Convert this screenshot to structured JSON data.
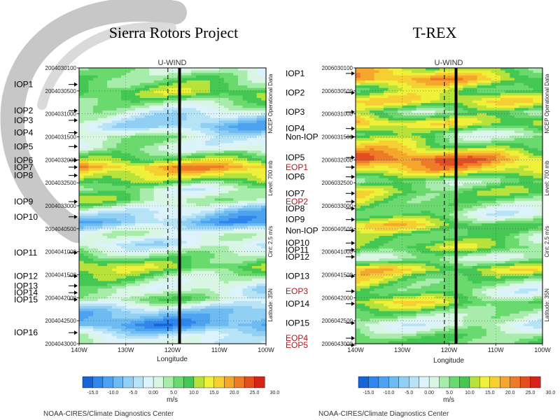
{
  "colors": {
    "levels": [
      -15,
      -12.5,
      -10,
      -7.5,
      -5,
      -2.5,
      0,
      2.5,
      5,
      7.5,
      10,
      12.5,
      15,
      17.5,
      20,
      22.5,
      25,
      27.5,
      30
    ],
    "palette": [
      "#1565d8",
      "#2f86ec",
      "#4ea3f0",
      "#6ebbf2",
      "#91d0f4",
      "#b7e3f7",
      "#ddf3fb",
      "#d8f6e3",
      "#a8ecac",
      "#6ad96e",
      "#45c853",
      "#b7e23b",
      "#eef03a",
      "#f6cf32",
      "#f5a72c",
      "#ef7a27",
      "#e44d1f",
      "#d6231a"
    ]
  },
  "chart_data": [
    {
      "type": "heatmap",
      "title": "Sierra Rotors Project",
      "subtitle": "U-WIND",
      "xlabel": "Longitude",
      "x_ticks": [
        "140W",
        "130W",
        "120W",
        "110W",
        "100W"
      ],
      "xlim": [
        -140,
        -100
      ],
      "y_ticks": [
        "2004030100",
        "2004030500",
        "2004031000",
        "2004031500",
        "2004032000",
        "2004032500",
        "2004033000",
        "2004040500",
        "2004041000",
        "2004041500",
        "2004042000",
        "2004042500",
        "2004043000"
      ],
      "side_texts": [
        "NCEP Operational Data",
        "Level: 700 mb",
        "Cint: 2.5 m/s",
        "Latitude: 35N"
      ],
      "base_value": 3,
      "east_gradient": -4,
      "dashed_line_lon": -121,
      "thick_line_lon": -118.5,
      "bands": [
        {
          "t": 0.0,
          "v": 4
        },
        {
          "t": 0.05,
          "v": 9
        },
        {
          "t": 0.09,
          "v": 14
        },
        {
          "t": 0.13,
          "v": 8
        },
        {
          "t": 0.17,
          "v": 2
        },
        {
          "t": 0.21,
          "v": -3
        },
        {
          "t": 0.25,
          "v": 5
        },
        {
          "t": 0.29,
          "v": 3
        },
        {
          "t": 0.33,
          "v": 12
        },
        {
          "t": 0.36,
          "v": 22
        },
        {
          "t": 0.4,
          "v": 16
        },
        {
          "t": 0.44,
          "v": 6
        },
        {
          "t": 0.48,
          "v": 9
        },
        {
          "t": 0.52,
          "v": -1
        },
        {
          "t": 0.56,
          "v": -6
        },
        {
          "t": 0.6,
          "v": 4
        },
        {
          "t": 0.64,
          "v": 1
        },
        {
          "t": 0.68,
          "v": 9
        },
        {
          "t": 0.72,
          "v": 15
        },
        {
          "t": 0.76,
          "v": 8
        },
        {
          "t": 0.8,
          "v": 3
        },
        {
          "t": 0.84,
          "v": 7
        },
        {
          "t": 0.88,
          "v": -4
        },
        {
          "t": 0.93,
          "v": -8
        },
        {
          "t": 0.97,
          "v": 2
        },
        {
          "t": 1.0,
          "v": 5
        }
      ],
      "iops": [
        {
          "label": "IOP1",
          "t": 0.06,
          "color": "black"
        },
        {
          "label": "IOP2",
          "t": 0.155,
          "color": "black"
        },
        {
          "label": "IOP3",
          "t": 0.19,
          "color": "black"
        },
        {
          "label": "IOP4",
          "t": 0.235,
          "color": "black"
        },
        {
          "label": "IOP5",
          "t": 0.285,
          "color": "black"
        },
        {
          "label": "IOP6",
          "t": 0.335,
          "color": "black"
        },
        {
          "label": "IOP7",
          "t": 0.36,
          "color": "black"
        },
        {
          "label": "IOP8",
          "t": 0.39,
          "color": "black"
        },
        {
          "label": "IOP9",
          "t": 0.485,
          "color": "black"
        },
        {
          "label": "IOP10",
          "t": 0.54,
          "color": "black"
        },
        {
          "label": "IOP11",
          "t": 0.67,
          "color": "black"
        },
        {
          "label": "IOP12",
          "t": 0.755,
          "color": "black"
        },
        {
          "label": "IOP13",
          "t": 0.79,
          "color": "black"
        },
        {
          "label": "IOP14",
          "t": 0.815,
          "color": "black"
        },
        {
          "label": "IOP15",
          "t": 0.84,
          "color": "black"
        },
        {
          "label": "IOP16",
          "t": 0.96,
          "color": "black"
        }
      ],
      "colorbar_units": "m/s",
      "colorbar_ticks": [
        "-15.0",
        "-10.0",
        "-5.0",
        "0.00",
        "5.0",
        "10.0",
        "15.0",
        "20.0",
        "25.0",
        "30.0"
      ],
      "credit": "NOAA-CIRES/Climate Diagnostics Center"
    },
    {
      "type": "heatmap",
      "title": "T-REX",
      "subtitle": "U-WIND",
      "xlabel": "Longitude",
      "x_ticks": [
        "140W",
        "130W",
        "120W",
        "110W",
        "100W"
      ],
      "xlim": [
        -140,
        -100
      ],
      "y_ticks": [
        "2006030100",
        "2006030500",
        "2006031000",
        "2006031500",
        "2006032000",
        "2006032500",
        "2006033000",
        "2006040500",
        "2006041000",
        "2006041500",
        "2006042000",
        "2006042500",
        "2006043000"
      ],
      "side_texts": [
        "NCEP Operational Data",
        "Level: 700 mb",
        "Cint: 2.5 m/s",
        "Latitude: 35N"
      ],
      "base_value": 11,
      "east_gradient": -6,
      "dashed_line_lon": -121,
      "thick_line_lon": -118.5,
      "bands": [
        {
          "t": 0.0,
          "v": 14
        },
        {
          "t": 0.04,
          "v": 20
        },
        {
          "t": 0.08,
          "v": 12
        },
        {
          "t": 0.12,
          "v": 18
        },
        {
          "t": 0.16,
          "v": 10
        },
        {
          "t": 0.2,
          "v": 19
        },
        {
          "t": 0.24,
          "v": 9
        },
        {
          "t": 0.28,
          "v": 13
        },
        {
          "t": 0.33,
          "v": 24
        },
        {
          "t": 0.37,
          "v": 19
        },
        {
          "t": 0.41,
          "v": 8
        },
        {
          "t": 0.45,
          "v": 14
        },
        {
          "t": 0.49,
          "v": 11
        },
        {
          "t": 0.53,
          "v": 7
        },
        {
          "t": 0.57,
          "v": 15
        },
        {
          "t": 0.61,
          "v": 9
        },
        {
          "t": 0.65,
          "v": 13
        },
        {
          "t": 0.69,
          "v": 6
        },
        {
          "t": 0.73,
          "v": 18
        },
        {
          "t": 0.77,
          "v": 12
        },
        {
          "t": 0.81,
          "v": 8
        },
        {
          "t": 0.85,
          "v": 14
        },
        {
          "t": 0.89,
          "v": 7
        },
        {
          "t": 0.93,
          "v": 3
        },
        {
          "t": 0.97,
          "v": 10
        },
        {
          "t": 1.0,
          "v": 12
        }
      ],
      "iops": [
        {
          "label": "IOP1",
          "t": 0.02,
          "color": "black"
        },
        {
          "label": "IOP2",
          "t": 0.09,
          "color": "black"
        },
        {
          "label": "IOP3",
          "t": 0.16,
          "color": "black"
        },
        {
          "label": "IOP4",
          "t": 0.22,
          "color": "black"
        },
        {
          "label": "Non-IOP",
          "t": 0.25,
          "color": "black"
        },
        {
          "label": "IOP5",
          "t": 0.325,
          "color": "black"
        },
        {
          "label": "EOP1",
          "t": 0.36,
          "color": "red"
        },
        {
          "label": "IOP6",
          "t": 0.395,
          "color": "black"
        },
        {
          "label": "IOP7",
          "t": 0.455,
          "color": "black"
        },
        {
          "label": "EOP2",
          "t": 0.485,
          "color": "red"
        },
        {
          "label": "IOP8",
          "t": 0.51,
          "color": "black"
        },
        {
          "label": "IOP9",
          "t": 0.55,
          "color": "black"
        },
        {
          "label": "Non-IOP",
          "t": 0.59,
          "color": "black"
        },
        {
          "label": "IOP10",
          "t": 0.635,
          "color": "black"
        },
        {
          "label": "IOP11",
          "t": 0.66,
          "color": "black"
        },
        {
          "label": "IOP12",
          "t": 0.685,
          "color": "black"
        },
        {
          "label": "IOP13",
          "t": 0.755,
          "color": "black"
        },
        {
          "label": "EOP3",
          "t": 0.81,
          "color": "red"
        },
        {
          "label": "IOP14",
          "t": 0.855,
          "color": "black"
        },
        {
          "label": "IOP15",
          "t": 0.925,
          "color": "black"
        },
        {
          "label": "EOP4",
          "t": 0.98,
          "color": "red"
        },
        {
          "label": "EOP5",
          "t": 1.005,
          "color": "red"
        }
      ],
      "colorbar_units": "m/s",
      "colorbar_ticks": [
        "-15.0",
        "-10.0",
        "-5.0",
        "0.00",
        "5.0",
        "10.0",
        "15.0",
        "20.0",
        "25.0",
        "30.0"
      ],
      "credit": "NOAA-CIRES/Climate Diagnostics Center"
    }
  ]
}
